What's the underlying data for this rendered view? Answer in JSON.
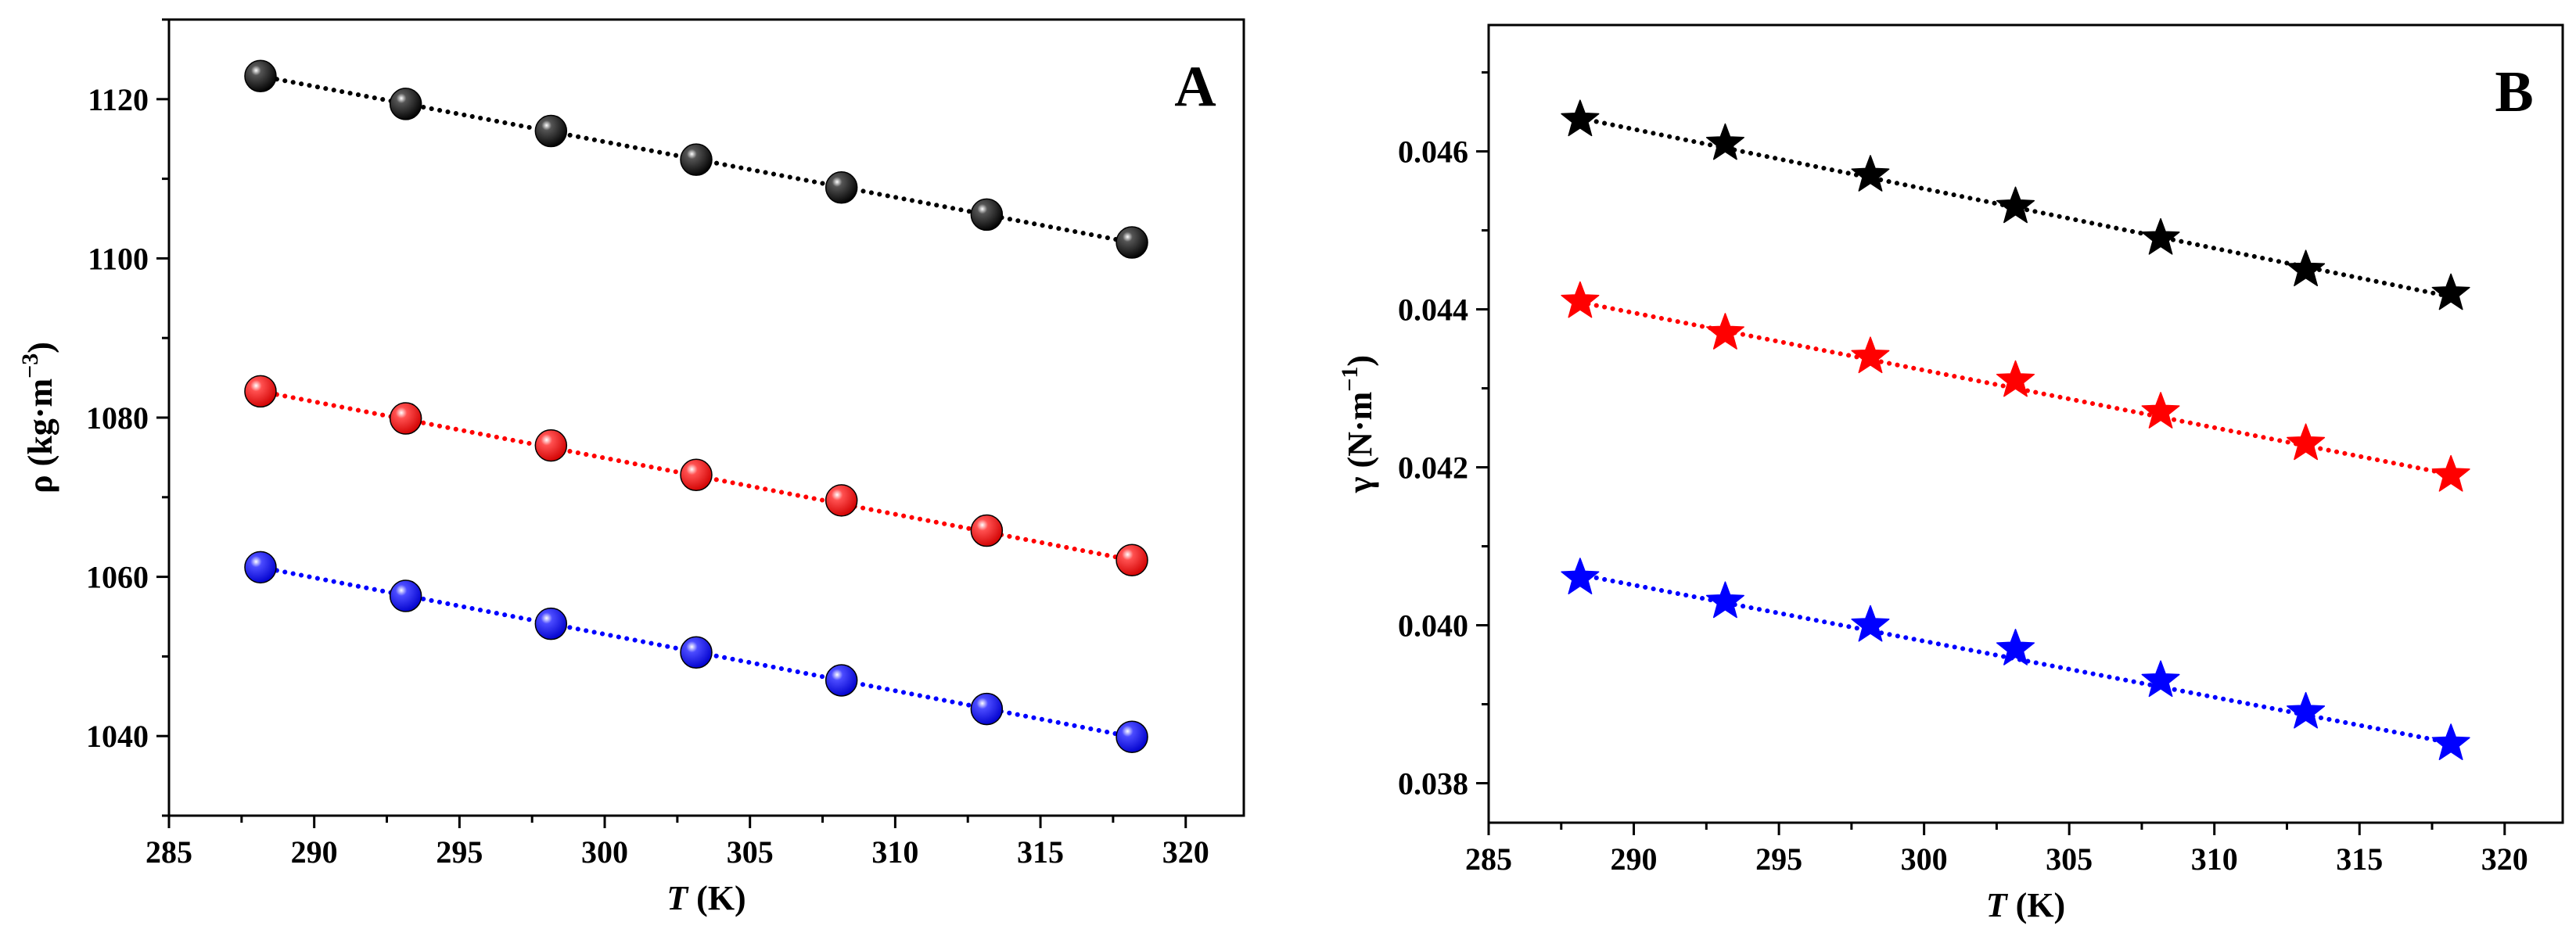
{
  "colors": {
    "black_series": "#000000",
    "red_series": "#ff0000",
    "blue_series": "#0000ff"
  },
  "chart_data": [
    {
      "panel_label": "A",
      "type": "scatter",
      "marker": "sphere",
      "fit_line": "dotted linear",
      "xlabel": {
        "italic": "T",
        "rest": " (K)"
      },
      "ylabel": {
        "base": "ρ (kg·m",
        "sup": "−3",
        "close": ")"
      },
      "xlim": [
        285,
        322
      ],
      "ylim": [
        1030,
        1130
      ],
      "xticks": [
        285,
        290,
        295,
        300,
        305,
        310,
        315,
        320
      ],
      "yticks": [
        1040,
        1060,
        1080,
        1100,
        1120
      ],
      "series": [
        {
          "name": "black",
          "color": "#000000",
          "x": [
            288.15,
            293.15,
            298.15,
            303.15,
            308.15,
            313.15,
            318.15
          ],
          "y": [
            1122.9,
            1119.4,
            1116.0,
            1112.4,
            1108.9,
            1105.5,
            1102.0
          ],
          "fit": [
            [
              288.15,
              1122.9
            ],
            [
              318.15,
              1102.0
            ]
          ]
        },
        {
          "name": "red",
          "color": "#ff0000",
          "x": [
            288.15,
            293.15,
            298.15,
            303.15,
            308.15,
            313.15,
            318.15
          ],
          "y": [
            1083.3,
            1079.9,
            1076.5,
            1072.8,
            1069.6,
            1065.8,
            1062.1
          ],
          "fit": [
            [
              288.15,
              1083.3
            ],
            [
              318.15,
              1062.1
            ]
          ]
        },
        {
          "name": "blue",
          "color": "#0000ff",
          "x": [
            288.15,
            293.15,
            298.15,
            303.15,
            308.15,
            313.15,
            318.15
          ],
          "y": [
            1061.2,
            1057.6,
            1054.1,
            1050.5,
            1047.0,
            1043.4,
            1039.9
          ],
          "fit": [
            [
              288.15,
              1061.2
            ],
            [
              318.15,
              1039.9
            ]
          ]
        }
      ]
    },
    {
      "panel_label": "B",
      "type": "scatter",
      "marker": "star",
      "fit_line": "dotted linear",
      "xlabel": {
        "italic": "T",
        "rest": " (K)"
      },
      "ylabel": {
        "base": "γ (N·m",
        "sup": "−1",
        "close": ")"
      },
      "xlim": [
        285,
        322
      ],
      "ylim": [
        0.0375,
        0.0476
      ],
      "xticks": [
        285,
        290,
        295,
        300,
        305,
        310,
        315,
        320
      ],
      "yticks": [
        0.038,
        0.04,
        0.042,
        0.044,
        0.046
      ],
      "ytick_labels": [
        "0.038",
        "0.040",
        "0.042",
        "0.044",
        "0.046"
      ],
      "series": [
        {
          "name": "black",
          "color": "#000000",
          "x": [
            288.15,
            293.15,
            298.15,
            303.15,
            308.15,
            313.15,
            318.15
          ],
          "y": [
            0.0464,
            0.0461,
            0.0457,
            0.0453,
            0.0449,
            0.0445,
            0.0442
          ],
          "fit": [
            [
              288.15,
              0.04642
            ],
            [
              318.15,
              0.04416
            ]
          ]
        },
        {
          "name": "red",
          "color": "#ff0000",
          "x": [
            288.15,
            293.15,
            298.15,
            303.15,
            308.15,
            313.15,
            318.15
          ],
          "y": [
            0.0441,
            0.0437,
            0.0434,
            0.0431,
            0.0427,
            0.0423,
            0.0419
          ],
          "fit": [
            [
              288.15,
              0.04409
            ],
            [
              318.15,
              0.04191
            ]
          ]
        },
        {
          "name": "blue",
          "color": "#0000ff",
          "x": [
            288.15,
            293.15,
            298.15,
            303.15,
            308.15,
            313.15,
            318.15
          ],
          "y": [
            0.0406,
            0.0403,
            0.04,
            0.0397,
            0.0393,
            0.0389,
            0.0385
          ],
          "fit": [
            [
              288.15,
              0.04064
            ],
            [
              318.15,
              0.03851
            ]
          ]
        }
      ]
    }
  ]
}
